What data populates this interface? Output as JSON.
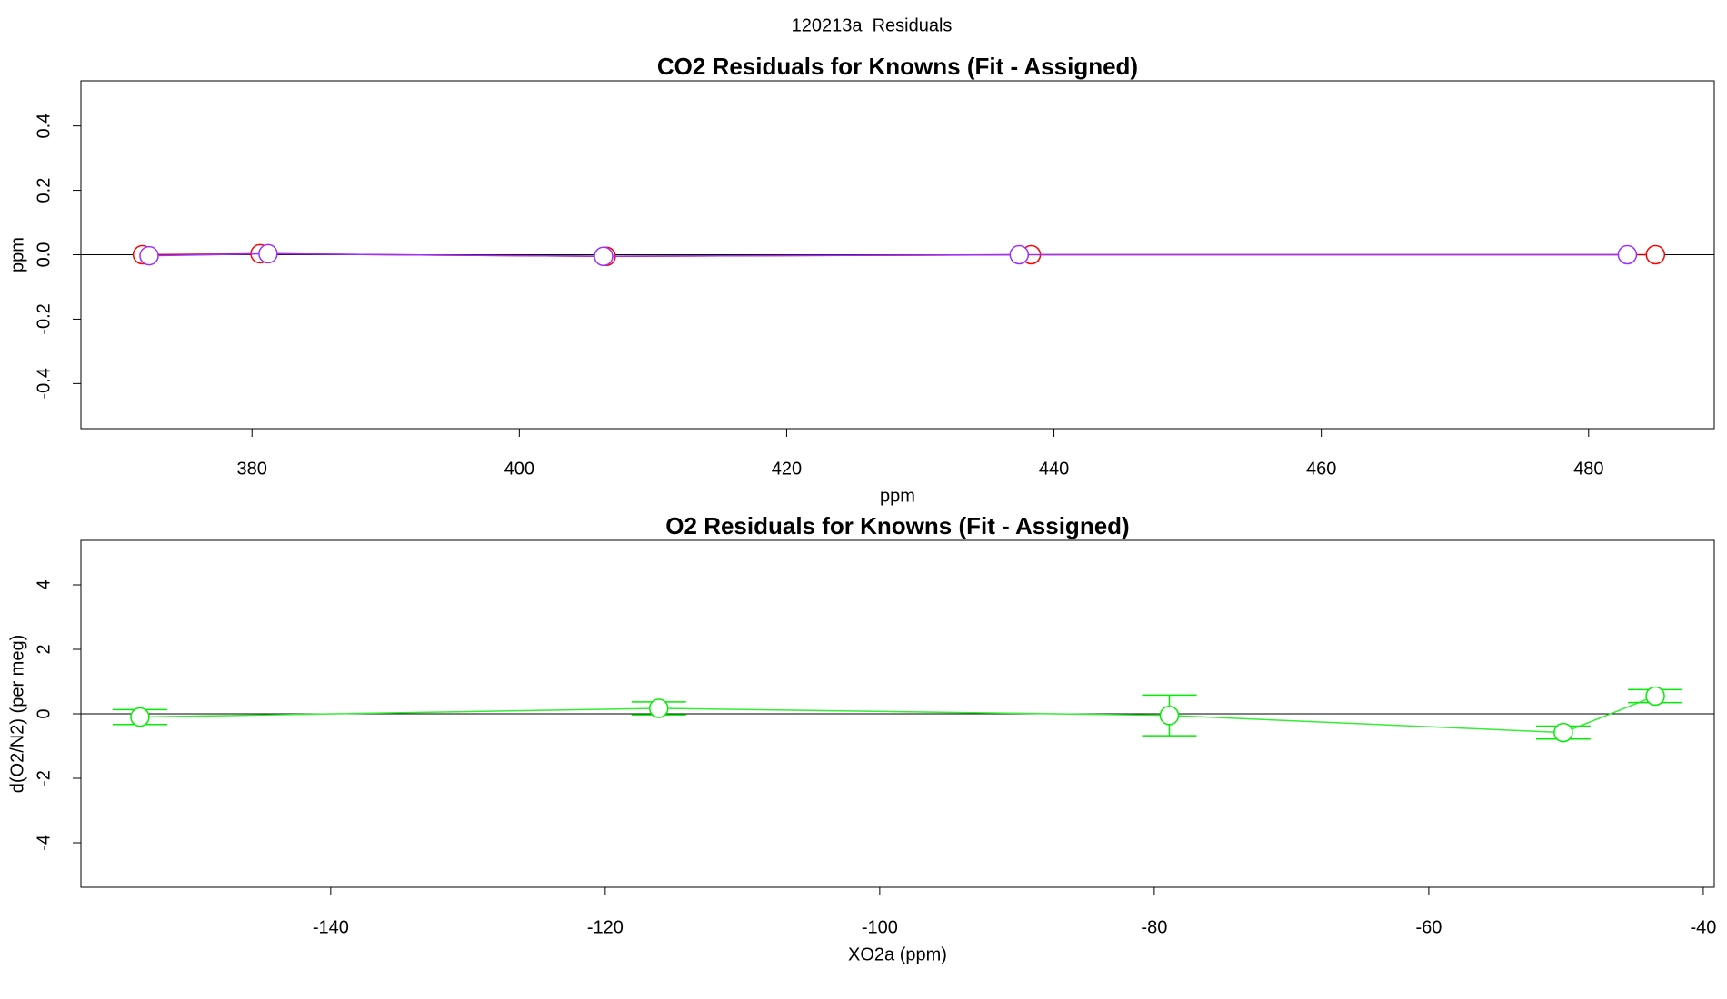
{
  "title": "120213a  Residuals",
  "chart_data": [
    {
      "type": "scatter",
      "title": "CO2 Residuals for Knowns (Fit - Assigned)",
      "x_label": "ppm",
      "y_label": "ppm",
      "xlim": [
        367.2,
        489.4
      ],
      "ylim": [
        -0.54,
        0.54
      ],
      "xticks": [
        380,
        400,
        420,
        440,
        460,
        480
      ],
      "yticks": [
        -0.4,
        -0.2,
        {
          "value": 0,
          "label": "0.0"
        },
        0.2,
        0.4
      ],
      "hline": 0,
      "series": [
        {
          "color": "#ff0000",
          "line_color": "#cc0000",
          "x": [
            371.8,
            380.6,
            406.5,
            438.3,
            485.0
          ],
          "values": [
            0,
            0.003,
            -0.005,
            0,
            0
          ]
        },
        {
          "color": "#9b30ff",
          "line_color": "#9b30ff",
          "x": [
            372.3,
            381.2,
            406.3,
            437.4,
            482.9
          ],
          "values": [
            -0.003,
            0.003,
            -0.005,
            0,
            0
          ]
        }
      ]
    },
    {
      "type": "scatter",
      "title": "O2 Residuals for Knowns (Fit - Assigned)",
      "x_label": "XO2a (ppm)",
      "y_label": "d(O2/N2) (per meg)",
      "xlim": [
        -158.2,
        -39.2
      ],
      "ylim": [
        -5.38,
        5.38
      ],
      "xticks": [
        -140,
        -120,
        -100,
        -80,
        -60,
        -40
      ],
      "yticks": [
        -4,
        -2,
        0,
        2,
        4
      ],
      "hline": 0,
      "series": [
        {
          "color": "#00ee00",
          "line_color": "#33ee33",
          "x": [
            -153.9,
            -116.1,
            -78.9,
            -50.2,
            -43.5
          ],
          "values": [
            -0.1,
            0.17,
            -0.05,
            -0.58,
            0.55
          ],
          "errors": [
            0.23,
            0.2,
            0.63,
            0.2,
            0.2
          ]
        }
      ]
    }
  ]
}
